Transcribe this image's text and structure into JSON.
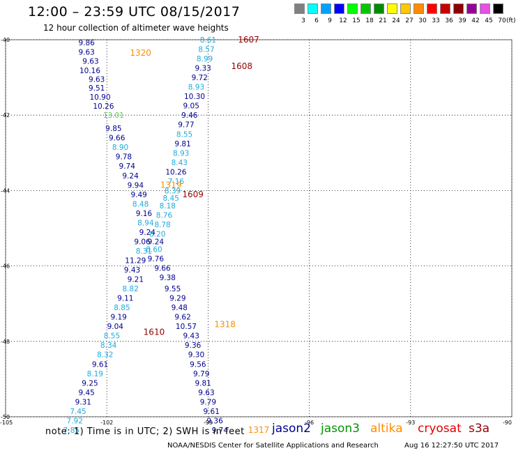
{
  "header": {
    "title": "12:00 – 23:59 UTC 08/15/2017",
    "subtitle": "12 hour collection of altimeter wave heights"
  },
  "color_scale": {
    "units": "(ft)",
    "bins": [
      {
        "label": "3",
        "color": "#808080"
      },
      {
        "label": "6",
        "color": "#00ffff"
      },
      {
        "label": "9",
        "color": "#00a0ff"
      },
      {
        "label": "12",
        "color": "#0000ff"
      },
      {
        "label": "15",
        "color": "#00ff00"
      },
      {
        "label": "18",
        "color": "#00c800"
      },
      {
        "label": "21",
        "color": "#008c00"
      },
      {
        "label": "24",
        "color": "#ffff00"
      },
      {
        "label": "27",
        "color": "#ffc800"
      },
      {
        "label": "30",
        "color": "#ff8c00"
      },
      {
        "label": "33",
        "color": "#ff0000"
      },
      {
        "label": "36",
        "color": "#c80000"
      },
      {
        "label": "39",
        "color": "#8c0000"
      },
      {
        "label": "42",
        "color": "#960096"
      },
      {
        "label": "45",
        "color": "#e650e6"
      },
      {
        "label": "70",
        "color": "#000000"
      }
    ]
  },
  "colors": {
    "jason2": "#00008c",
    "jason3": "#009600",
    "altika": "#ff8c00",
    "cryosat": "#e60000",
    "s3a": "#960000",
    "light": "#1eaadc",
    "dark": "#00008c",
    "green": "#5ac85a"
  },
  "map": {
    "lat_ticks": [
      "-40",
      "-42",
      "-44",
      "-46",
      "-48",
      "-50"
    ],
    "lon_ticks": [
      "-105",
      "-102",
      "-99",
      "-96",
      "-93",
      "-90"
    ]
  },
  "chart_data": {
    "type": "scatter",
    "xlim": [
      -105,
      -90
    ],
    "ylim": [
      -50,
      -40
    ],
    "xticks": [
      -105,
      -102,
      -99,
      -96,
      -93,
      -90
    ],
    "yticks": [
      -50,
      -48,
      -46,
      -44,
      -42,
      -40
    ],
    "grid": true,
    "swh_points": [
      {
        "lon": -102.6,
        "lat": -40.07,
        "v": "9.86",
        "c": "dark"
      },
      {
        "lon": -102.6,
        "lat": -40.32,
        "v": "9.63",
        "c": "dark"
      },
      {
        "lon": -102.48,
        "lat": -40.56,
        "v": "9.63",
        "c": "dark"
      },
      {
        "lon": -102.5,
        "lat": -40.81,
        "v": "10.16",
        "c": "dark"
      },
      {
        "lon": -102.3,
        "lat": -41.04,
        "v": "9.63",
        "c": "dark"
      },
      {
        "lon": -102.3,
        "lat": -41.28,
        "v": "9.51",
        "c": "dark"
      },
      {
        "lon": -102.2,
        "lat": -41.52,
        "v": "10.90",
        "c": "dark"
      },
      {
        "lon": -102.1,
        "lat": -41.76,
        "v": "10.26",
        "c": "dark"
      },
      {
        "lon": -101.8,
        "lat": -42.0,
        "v": "13.01",
        "c": "green"
      },
      {
        "lon": -101.8,
        "lat": -42.35,
        "v": "9.85",
        "c": "dark"
      },
      {
        "lon": -101.7,
        "lat": -42.6,
        "v": "9.66",
        "c": "dark"
      },
      {
        "lon": -101.6,
        "lat": -42.85,
        "v": "8.90",
        "c": "light"
      },
      {
        "lon": -101.5,
        "lat": -43.1,
        "v": "9.78",
        "c": "dark"
      },
      {
        "lon": -101.4,
        "lat": -43.35,
        "v": "9.74",
        "c": "dark"
      },
      {
        "lon": -101.3,
        "lat": -43.6,
        "v": "9.24",
        "c": "dark"
      },
      {
        "lon": -101.15,
        "lat": -43.85,
        "v": "9.94",
        "c": "dark"
      },
      {
        "lon": -101.05,
        "lat": -44.1,
        "v": "9.49",
        "c": "dark"
      },
      {
        "lon": -101.0,
        "lat": -44.35,
        "v": "8.48",
        "c": "light"
      },
      {
        "lon": -100.9,
        "lat": -44.6,
        "v": "9.16",
        "c": "dark"
      },
      {
        "lon": -100.85,
        "lat": -44.85,
        "v": "8.94",
        "c": "light"
      },
      {
        "lon": -100.8,
        "lat": -45.1,
        "v": "9.24",
        "c": "dark"
      },
      {
        "lon": -100.95,
        "lat": -45.35,
        "v": "9.06",
        "c": "dark"
      },
      {
        "lon": -100.9,
        "lat": -45.6,
        "v": "8.31",
        "c": "light"
      },
      {
        "lon": -101.15,
        "lat": -45.85,
        "v": "11.29",
        "c": "dark"
      },
      {
        "lon": -101.25,
        "lat": -46.1,
        "v": "9.43",
        "c": "dark"
      },
      {
        "lon": -101.15,
        "lat": -46.35,
        "v": "9.21",
        "c": "dark"
      },
      {
        "lon": -101.3,
        "lat": -46.6,
        "v": "8.82",
        "c": "light"
      },
      {
        "lon": -101.45,
        "lat": -46.85,
        "v": "9.11",
        "c": "dark"
      },
      {
        "lon": -101.55,
        "lat": -47.1,
        "v": "8.85",
        "c": "light"
      },
      {
        "lon": -101.65,
        "lat": -47.35,
        "v": "9.19",
        "c": "dark"
      },
      {
        "lon": -101.75,
        "lat": -47.6,
        "v": "9.04",
        "c": "dark"
      },
      {
        "lon": -101.85,
        "lat": -47.85,
        "v": "8.55",
        "c": "light"
      },
      {
        "lon": -101.95,
        "lat": -48.1,
        "v": "8.34",
        "c": "light"
      },
      {
        "lon": -102.05,
        "lat": -48.35,
        "v": "8.32",
        "c": "light"
      },
      {
        "lon": -102.2,
        "lat": -48.6,
        "v": "9.61",
        "c": "dark"
      },
      {
        "lon": -102.35,
        "lat": -48.85,
        "v": "8.19",
        "c": "light"
      },
      {
        "lon": -102.5,
        "lat": -49.1,
        "v": "9.25",
        "c": "dark"
      },
      {
        "lon": -102.6,
        "lat": -49.35,
        "v": "9.45",
        "c": "dark"
      },
      {
        "lon": -102.7,
        "lat": -49.6,
        "v": "9.31",
        "c": "dark"
      },
      {
        "lon": -102.85,
        "lat": -49.85,
        "v": "7.45",
        "c": "light"
      },
      {
        "lon": -102.95,
        "lat": -50.1,
        "v": "7.92",
        "c": "light"
      },
      {
        "lon": -103.05,
        "lat": -50.35,
        "v": "7.85",
        "c": "light"
      },
      {
        "lon": -99.0,
        "lat": -40.0,
        "v": "8.61",
        "c": "light"
      },
      {
        "lon": -99.05,
        "lat": -40.25,
        "v": "8.57",
        "c": "light"
      },
      {
        "lon": -99.1,
        "lat": -40.5,
        "v": "8.99",
        "c": "light"
      },
      {
        "lon": -99.15,
        "lat": -40.75,
        "v": "9.33",
        "c": "dark"
      },
      {
        "lon": -99.25,
        "lat": -41.0,
        "v": "9.72",
        "c": "dark"
      },
      {
        "lon": -99.35,
        "lat": -41.25,
        "v": "8.93",
        "c": "light"
      },
      {
        "lon": -99.4,
        "lat": -41.5,
        "v": "10.30",
        "c": "dark"
      },
      {
        "lon": -99.5,
        "lat": -41.75,
        "v": "9.05",
        "c": "dark"
      },
      {
        "lon": -99.55,
        "lat": -42.0,
        "v": "9.46",
        "c": "dark"
      },
      {
        "lon": -99.65,
        "lat": -42.25,
        "v": "9.77",
        "c": "dark"
      },
      {
        "lon": -99.7,
        "lat": -42.5,
        "v": "8.55",
        "c": "light"
      },
      {
        "lon": -99.75,
        "lat": -42.75,
        "v": "9.81",
        "c": "dark"
      },
      {
        "lon": -99.8,
        "lat": -43.0,
        "v": "8.93",
        "c": "light"
      },
      {
        "lon": -99.85,
        "lat": -43.25,
        "v": "8.43",
        "c": "light"
      },
      {
        "lon": -99.95,
        "lat": -43.5,
        "v": "10.26",
        "c": "dark"
      },
      {
        "lon": -99.95,
        "lat": -43.75,
        "v": "7.16",
        "c": "light"
      },
      {
        "lon": -100.05,
        "lat": -44.0,
        "v": "8.39",
        "c": "light"
      },
      {
        "lon": -100.1,
        "lat": -44.2,
        "v": "8.45",
        "c": "light"
      },
      {
        "lon": -100.2,
        "lat": -44.4,
        "v": "8.18",
        "c": "light"
      },
      {
        "lon": -100.3,
        "lat": -44.65,
        "v": "8.76",
        "c": "light"
      },
      {
        "lon": -100.35,
        "lat": -44.9,
        "v": "8.78",
        "c": "light"
      },
      {
        "lon": -100.5,
        "lat": -45.15,
        "v": "8.20",
        "c": "light"
      },
      {
        "lon": -100.55,
        "lat": -45.35,
        "v": "9.24",
        "c": "dark"
      },
      {
        "lon": -100.6,
        "lat": -45.55,
        "v": "8.60",
        "c": "light"
      },
      {
        "lon": -100.55,
        "lat": -45.8,
        "v": "9.76",
        "c": "dark"
      },
      {
        "lon": -100.35,
        "lat": -46.05,
        "v": "9.66",
        "c": "dark"
      },
      {
        "lon": -100.2,
        "lat": -46.3,
        "v": "9.38",
        "c": "dark"
      },
      {
        "lon": -100.05,
        "lat": -46.6,
        "v": "9.55",
        "c": "dark"
      },
      {
        "lon": -99.9,
        "lat": -46.85,
        "v": "9.29",
        "c": "dark"
      },
      {
        "lon": -99.85,
        "lat": -47.1,
        "v": "9.48",
        "c": "dark"
      },
      {
        "lon": -99.75,
        "lat": -47.35,
        "v": "9.62",
        "c": "dark"
      },
      {
        "lon": -99.65,
        "lat": -47.6,
        "v": "10.57",
        "c": "dark"
      },
      {
        "lon": -99.5,
        "lat": -47.85,
        "v": "9.43",
        "c": "dark"
      },
      {
        "lon": -99.45,
        "lat": -48.1,
        "v": "9.36",
        "c": "dark"
      },
      {
        "lon": -99.35,
        "lat": -48.35,
        "v": "9.30",
        "c": "dark"
      },
      {
        "lon": -99.3,
        "lat": -48.6,
        "v": "9.56",
        "c": "dark"
      },
      {
        "lon": -99.2,
        "lat": -48.85,
        "v": "9.79",
        "c": "dark"
      },
      {
        "lon": -99.15,
        "lat": -49.1,
        "v": "9.81",
        "c": "dark"
      },
      {
        "lon": -99.05,
        "lat": -49.35,
        "v": "9.63",
        "c": "dark"
      },
      {
        "lon": -99.0,
        "lat": -49.6,
        "v": "9.79",
        "c": "dark"
      },
      {
        "lon": -98.9,
        "lat": -49.85,
        "v": "9.61",
        "c": "dark"
      },
      {
        "lon": -98.8,
        "lat": -50.1,
        "v": "9.36",
        "c": "dark"
      },
      {
        "lon": -98.65,
        "lat": -50.35,
        "v": "9.74",
        "c": "dark"
      }
    ],
    "pass_times": [
      {
        "lon": -97.8,
        "lat": -40.0,
        "t": "1607",
        "sat": "s3a"
      },
      {
        "lon": -98.0,
        "lat": -40.7,
        "t": "1608",
        "sat": "s3a"
      },
      {
        "lon": -101.0,
        "lat": -40.35,
        "t": "1320",
        "sat": "altika"
      },
      {
        "lon": -100.1,
        "lat": -43.85,
        "t": "1319",
        "sat": "altika"
      },
      {
        "lon": -99.45,
        "lat": -44.1,
        "t": "1609",
        "sat": "s3a"
      },
      {
        "lon": -100.6,
        "lat": -47.75,
        "t": "1610",
        "sat": "s3a"
      },
      {
        "lon": -98.5,
        "lat": -47.55,
        "t": "1318",
        "sat": "altika"
      },
      {
        "lon": -97.5,
        "lat": -50.35,
        "t": "1317",
        "sat": "altika"
      }
    ]
  },
  "footer": {
    "note": "note:  1) Time is in UTC; 2) SWH is in feet",
    "legend": [
      {
        "key": "jason2",
        "label": "jason2"
      },
      {
        "key": "jason3",
        "label": "jason3"
      },
      {
        "key": "altika",
        "label": "altika"
      },
      {
        "key": "cryosat",
        "label": "cryosat"
      },
      {
        "key": "s3a",
        "label": "s3a"
      }
    ],
    "credit": "NOAA/NESDIS Center for Satellite Applications and Research",
    "timestamp": "Aug 16 12:27:50 UTC 2017"
  }
}
